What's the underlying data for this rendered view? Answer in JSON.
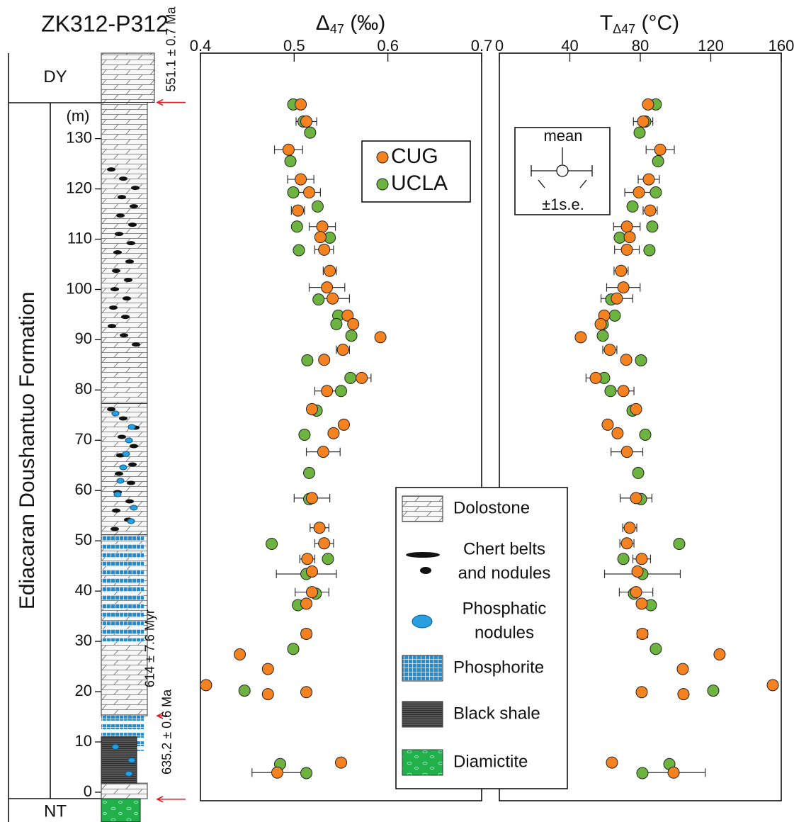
{
  "chart_data": [
    {
      "type": "column",
      "title": "ZK312-P312",
      "ylabel": "(m)",
      "ylim": [
        -1.7,
        147
      ],
      "yticks": [
        0,
        10,
        20,
        30,
        40,
        50,
        60,
        70,
        80,
        90,
        100,
        110,
        120,
        130
      ],
      "formations": [
        {
          "text": "DY",
          "from": 137.2,
          "to": 147
        },
        {
          "text": "Ediacaran Doushantuo Formation",
          "from": -1.3,
          "to": 137.2
        },
        {
          "text": "NT",
          "from": -5.9,
          "to": -1.3
        }
      ],
      "ages": [
        {
          "text": "551.1 ± 0.7 Ma",
          "depth": 137.2
        },
        {
          "text": "614 ± 7.6 Myr",
          "depth": 15.2
        },
        {
          "text": "635.2 ± 0.6 Ma",
          "depth": -1.4
        }
      ],
      "lithology": [
        {
          "label": [
            "Dolostone"
          ],
          "layers": [
            [
              137.2,
              147
            ],
            [
              77.3,
              137.2
            ],
            [
              51.2,
              77.3
            ],
            [
              15.2,
              51.2
            ],
            [
              -1.3,
              1.8
            ]
          ]
        },
        {
          "label": [
            "Chert belts",
            "and nodules"
          ],
          "layers": [
            [
              88,
              125
            ],
            [
              51.2,
              77.3
            ]
          ]
        },
        {
          "label": [
            "Phosphatic",
            "nodules"
          ],
          "layers": [
            [
              51.2,
              77.3
            ],
            [
              1.8,
              11
            ]
          ]
        },
        {
          "label": [
            "Phosphorite"
          ],
          "layers": [
            [
              30,
              51
            ],
            [
              8.2,
              15.2
            ]
          ]
        },
        {
          "label": [
            "Black shale"
          ],
          "layers": [
            [
              1.8,
              11
            ]
          ]
        },
        {
          "label": [
            "Diamictite"
          ],
          "layers": [
            [
              -5.9,
              -1.3
            ]
          ]
        }
      ]
    },
    {
      "type": "scatter",
      "xlabel": {
        "main": "Δ",
        "sub": "47",
        "unit": " (‰)"
      },
      "xlim": [
        0.4,
        0.7
      ],
      "xticks": [
        0.4,
        0.5,
        0.6,
        0.7
      ],
      "ylim": [
        -1.7,
        147
      ],
      "series": [
        {
          "name": "UCLA",
          "color": "#6db33f",
          "y": [
            136.8,
            133.4,
            131.2,
            125.5,
            119.3,
            116.5,
            112.5,
            110.3,
            107.8,
            98.0,
            94.8,
            93.1,
            90.8,
            85.9,
            82.4,
            79.8,
            75.9,
            71.1,
            63.5,
            58.3,
            49.4,
            46.4,
            43.4,
            39.5,
            37.2,
            28.5,
            20.2,
            5.6,
            3.8
          ],
          "x": [
            0.499,
            0.51,
            0.517,
            0.496,
            0.499,
            0.525,
            0.503,
            0.538,
            0.505,
            0.526,
            0.547,
            0.545,
            0.561,
            0.514,
            0.56,
            0.55,
            0.524,
            0.511,
            0.516,
            0.516,
            0.476,
            0.536,
            0.513,
            0.523,
            0.504,
            0.499,
            0.447,
            0.485,
            0.513
          ],
          "xerr": [
            null,
            null,
            null,
            null,
            null,
            null,
            null,
            null,
            null,
            null,
            null,
            null,
            null,
            null,
            null,
            null,
            null,
            null,
            null,
            null,
            null,
            null,
            0.032,
            null,
            null,
            null,
            null,
            null,
            null
          ]
        },
        {
          "name": "CUG",
          "color": "#f58220",
          "y": [
            136.8,
            133.4,
            127.8,
            121.9,
            119.3,
            115.7,
            112.5,
            110.4,
            107.9,
            103.7,
            100.4,
            98.2,
            94.8,
            93.1,
            90.5,
            88.0,
            86.0,
            82.4,
            79.8,
            76.2,
            73.1,
            71.4,
            67.7,
            58.5,
            52.6,
            49.5,
            46.4,
            43.9,
            39.8,
            37.5,
            31.5,
            27.4,
            24.5,
            21.3,
            19.9,
            19.5,
            5.9,
            3.9
          ],
          "x": [
            0.507,
            0.513,
            0.494,
            0.507,
            0.516,
            0.504,
            0.53,
            0.528,
            0.532,
            0.538,
            0.535,
            0.541,
            0.557,
            0.563,
            0.592,
            0.552,
            0.532,
            0.572,
            0.535,
            0.519,
            0.553,
            0.542,
            0.531,
            0.519,
            0.527,
            0.532,
            0.514,
            0.519,
            0.519,
            0.513,
            0.513,
            0.442,
            0.472,
            0.406,
            0.513,
            0.472,
            0.55,
            0.482
          ],
          "xerr": [
            null,
            0.011,
            0.015,
            0.014,
            0.012,
            0.007,
            0.014,
            null,
            0.01,
            0.007,
            0.019,
            0.018,
            null,
            null,
            null,
            0.007,
            null,
            0.01,
            0.013,
            null,
            null,
            null,
            0.018,
            0.019,
            0.01,
            0.01,
            0.008,
            null,
            0.018,
            null,
            0.005,
            null,
            null,
            null,
            null,
            null,
            null,
            0.027
          ]
        }
      ]
    },
    {
      "type": "scatter",
      "xlabel": {
        "main": "T",
        "sub": "Δ47",
        "unit": "  (°C)"
      },
      "xlim": [
        0,
        160
      ],
      "xticks": [
        0,
        40,
        80,
        120,
        160
      ],
      "ylim": [
        -1.7,
        147
      ],
      "annotations": [
        "mean",
        "±1s.e."
      ],
      "series": [
        {
          "color": "#6db33f",
          "y": [
            136.8,
            133.4,
            131.2,
            125.5,
            119.3,
            116.5,
            112.5,
            110.3,
            107.8,
            98.0,
            94.8,
            93.1,
            90.8,
            85.9,
            82.4,
            79.8,
            75.9,
            71.1,
            63.5,
            58.3,
            49.4,
            46.4,
            43.4,
            39.5,
            37.2,
            28.5,
            20.2,
            5.6,
            3.8
          ],
          "x": [
            88.8,
            82.8,
            79.6,
            90.1,
            88.8,
            75.6,
            86.8,
            68.3,
            85.2,
            63.5,
            65.5,
            58.7,
            58.7,
            80.4,
            59.5,
            63.1,
            75.6,
            82.8,
            78.8,
            80.4,
            102.1,
            70.4,
            81.2,
            76.4,
            86.0,
            88.8,
            121.4,
            96.5,
            81.2
          ],
          "xerr": [
            null,
            null,
            null,
            null,
            null,
            null,
            null,
            null,
            null,
            null,
            null,
            null,
            null,
            null,
            null,
            null,
            null,
            null,
            null,
            null,
            null,
            null,
            21.5,
            null,
            null,
            null,
            null,
            null,
            null
          ]
        },
        {
          "color": "#f58220",
          "y": [
            136.8,
            133.4,
            127.8,
            121.9,
            119.3,
            115.7,
            112.5,
            110.4,
            107.9,
            103.7,
            100.4,
            98.2,
            94.8,
            93.1,
            90.5,
            88.0,
            86.0,
            82.4,
            79.8,
            76.2,
            73.1,
            71.4,
            67.7,
            58.5,
            52.6,
            49.5,
            46.4,
            43.9,
            39.8,
            37.5,
            31.5,
            27.4,
            24.5,
            21.3,
            19.9,
            19.5,
            5.9,
            3.9
          ],
          "x": [
            84.4,
            81.6,
            91.3,
            84.8,
            79.2,
            85.6,
            72.4,
            74.0,
            72.4,
            69.1,
            70.4,
            66.7,
            59.5,
            57.5,
            46.2,
            62.7,
            72.0,
            54.7,
            70.4,
            77.6,
            61.5,
            67.1,
            72.4,
            77.6,
            74.0,
            72.4,
            80.8,
            78.4,
            77.6,
            80.8,
            81.2,
            125.0,
            104.1,
            155.2,
            80.8,
            104.5,
            63.9,
            98.9
          ],
          "xerr": [
            null,
            5.5,
            8,
            6,
            8,
            4,
            7.5,
            null,
            7,
            4,
            9.5,
            9,
            null,
            null,
            null,
            4,
            null,
            5.5,
            6,
            null,
            null,
            null,
            9,
            9,
            4,
            4,
            5,
            null,
            9.5,
            null,
            3,
            null,
            null,
            null,
            null,
            null,
            null,
            18
          ]
        }
      ]
    }
  ]
}
